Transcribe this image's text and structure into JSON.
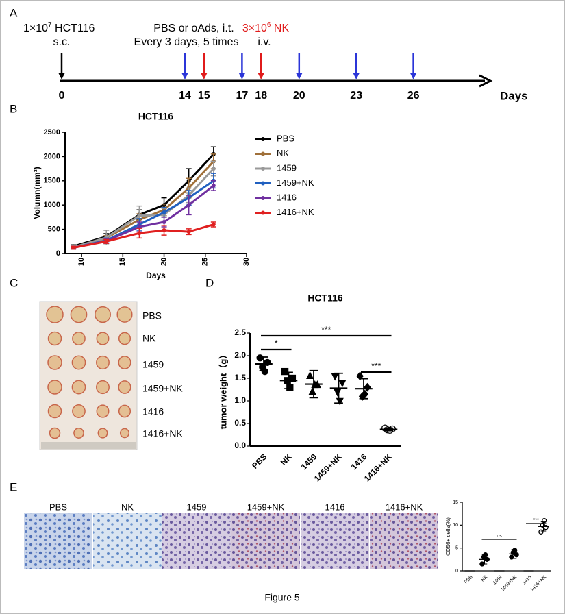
{
  "panels": [
    "A",
    "B",
    "C",
    "D",
    "E"
  ],
  "timeline": {
    "cells": {
      "pre": "1×10",
      "sup": "7",
      "post": " HCT116"
    },
    "cells_route": "s.c.",
    "treatment": [
      "PBS or oAds, i.t.",
      "Every 3 days, 5 times"
    ],
    "nk": {
      "pre": "3×10",
      "sup": "6",
      "post": " NK"
    },
    "nk_route": "i.v.",
    "days": [
      {
        "day": 0,
        "color": "#000000"
      },
      {
        "day": 14,
        "color": "#2b35d8"
      },
      {
        "day": 15,
        "color": "#e01b1b"
      },
      {
        "day": 17,
        "color": "#2b35d8"
      },
      {
        "day": 18,
        "color": "#e01b1b"
      },
      {
        "day": 20,
        "color": "#2b35d8"
      },
      {
        "day": 23,
        "color": "#2b35d8"
      },
      {
        "day": 26,
        "color": "#2b35d8"
      }
    ],
    "axis_label": "Days"
  },
  "chart_data": [
    {
      "type": "line",
      "title": "HCT116",
      "x_label": "Days",
      "y_label": "Volumn(mm³)",
      "x": [
        9,
        13,
        17,
        20,
        23,
        26
      ],
      "xlim": [
        8,
        30
      ],
      "xticks": [
        10,
        15,
        20,
        25,
        30
      ],
      "ylim": [
        0,
        2500
      ],
      "yticks": [
        0,
        500,
        1000,
        1500,
        2000,
        2500
      ],
      "series": [
        {
          "name": "PBS",
          "color": "#000000",
          "values": [
            150,
            350,
            800,
            1000,
            1500,
            2050
          ],
          "errors": [
            30,
            60,
            100,
            150,
            250,
            150
          ]
        },
        {
          "name": "NK",
          "color": "#a0703a",
          "values": [
            130,
            320,
            700,
            900,
            1350,
            1900
          ],
          "errors": [
            30,
            50,
            120,
            120,
            200,
            150
          ]
        },
        {
          "name": "1459",
          "color": "#999999",
          "values": [
            130,
            330,
            780,
            800,
            1200,
            1750
          ],
          "errors": [
            30,
            150,
            200,
            130,
            150,
            150
          ]
        },
        {
          "name": "1459+NK",
          "color": "#2060c0",
          "values": [
            120,
            270,
            600,
            850,
            1150,
            1500
          ],
          "errors": [
            30,
            50,
            120,
            100,
            150,
            150
          ]
        },
        {
          "name": "1416",
          "color": "#7030a0",
          "values": [
            120,
            260,
            550,
            650,
            1000,
            1400
          ],
          "errors": [
            30,
            50,
            100,
            100,
            200,
            100
          ]
        },
        {
          "name": "1416+NK",
          "color": "#e02020",
          "values": [
            120,
            250,
            420,
            480,
            450,
            600
          ],
          "errors": [
            30,
            40,
            100,
            100,
            60,
            50
          ]
        }
      ]
    },
    {
      "type": "dot",
      "title": "HCT116",
      "y_label": "tumor weight（g）",
      "categories": [
        "PBS",
        "NK",
        "1459",
        "1459+NK",
        "1416",
        "1416+NK"
      ],
      "ylim": [
        0,
        2.5
      ],
      "yticks": [
        {
          "value": 0,
          "label": "0.0"
        },
        0.5,
        {
          "value": 1,
          "label": "1.0"
        },
        1.5,
        {
          "value": 2,
          "label": "2.0"
        },
        2.5
      ],
      "groups": [
        {
          "marker": "circle",
          "filled": true,
          "points": [
            1.95,
            1.85,
            1.75,
            1.65
          ],
          "mean": 1.82,
          "sd": 0.15
        },
        {
          "marker": "square",
          "filled": true,
          "points": [
            1.65,
            1.5,
            1.45,
            1.3
          ],
          "mean": 1.45,
          "sd": 0.18
        },
        {
          "marker": "triangle",
          "filled": true,
          "points": [
            1.55,
            1.35,
            1.2,
            1.35
          ],
          "mean": 1.37,
          "sd": 0.3
        },
        {
          "marker": "triangle-down",
          "filled": true,
          "points": [
            1.55,
            1.4,
            1.2,
            1.0
          ],
          "mean": 1.28,
          "sd": 0.33
        },
        {
          "marker": "diamond",
          "filled": true,
          "points": [
            1.55,
            1.3,
            1.1,
            1.15
          ],
          "mean": 1.27,
          "sd": 0.22
        },
        {
          "marker": "circle",
          "filled": false,
          "points": [
            0.4,
            0.38,
            0.36,
            0.35
          ],
          "mean": 0.37,
          "sd": 0.03
        }
      ],
      "significance": [
        "*",
        "***",
        "***"
      ]
    },
    {
      "type": "dot",
      "y_label": "CD56+ cells(%)",
      "categories": [
        "PBS",
        "NK",
        "1459",
        "1459+NK",
        "1416",
        "1416+NK"
      ],
      "ylim": [
        0,
        15
      ],
      "yticks": [
        0,
        5,
        10,
        15
      ],
      "groups": [
        {
          "marker": "circle",
          "filled": true,
          "points": [],
          "mean": 0,
          "sd": 0
        },
        {
          "marker": "circle",
          "filled": true,
          "points": [
            1.5,
            2.5,
            3,
            3.5
          ],
          "mean": 2.5,
          "sd": 1
        },
        {
          "marker": "circle",
          "filled": true,
          "points": [],
          "mean": 0,
          "sd": 0
        },
        {
          "marker": "circle",
          "filled": true,
          "points": [
            3,
            3.5,
            4,
            4.5
          ],
          "mean": 3.7,
          "sd": 1
        },
        {
          "marker": "circle",
          "filled": true,
          "points": [],
          "mean": 0,
          "sd": 0
        },
        {
          "marker": "circle",
          "filled": false,
          "points": [
            8.5,
            9.5,
            10,
            11
          ],
          "mean": 9.7,
          "sd": 1
        }
      ],
      "significance": [
        "ns",
        "***"
      ]
    }
  ],
  "tumor_photo": {
    "labels": [
      "PBS",
      "NK",
      "1459",
      "1459+NK",
      "1416",
      "1416+NK"
    ]
  },
  "histology": {
    "labels": [
      "PBS",
      "NK",
      "1459",
      "1459+NK",
      "1416",
      "1416+NK"
    ]
  },
  "caption": "Figure 5"
}
